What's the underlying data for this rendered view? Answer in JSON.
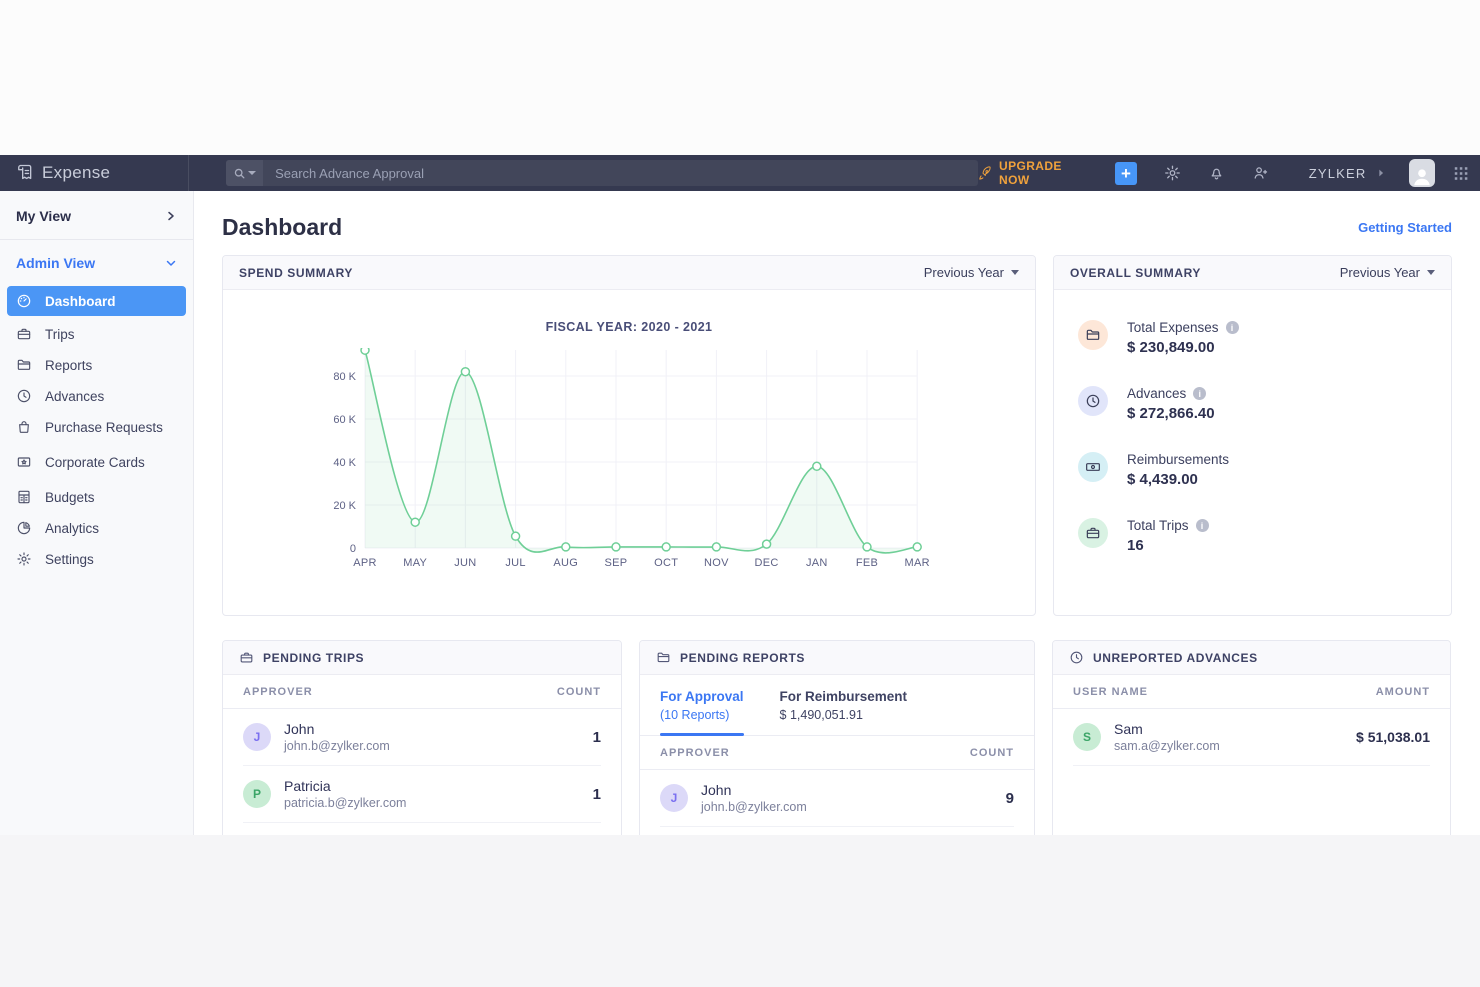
{
  "navbar": {
    "brand": "Expense",
    "search_placeholder": "Search Advance Approval",
    "upgrade_label": "UPGRADE NOW",
    "org_name": "ZYLKER"
  },
  "sidebar": {
    "my_view_label": "My View",
    "admin_view_label": "Admin View",
    "items": [
      {
        "label": "Dashboard",
        "icon": "dashboard-icon",
        "active": true
      },
      {
        "label": "Trips",
        "icon": "trips-icon",
        "active": false
      },
      {
        "label": "Reports",
        "icon": "reports-icon",
        "active": false
      },
      {
        "label": "Advances",
        "icon": "advances-icon",
        "active": false
      },
      {
        "label": "Purchase Requests",
        "icon": "purchase-requests-icon",
        "active": false
      },
      {
        "label": "Corporate Cards",
        "icon": "corporate-cards-icon",
        "active": false
      },
      {
        "label": "Budgets",
        "icon": "budgets-icon",
        "active": false
      },
      {
        "label": "Analytics",
        "icon": "analytics-icon",
        "active": false
      },
      {
        "label": "Settings",
        "icon": "settings-icon",
        "active": false
      }
    ]
  },
  "page": {
    "title": "Dashboard",
    "getting_started_label": "Getting Started"
  },
  "spend_summary": {
    "title": "SPEND SUMMARY",
    "period_selector": "Previous Year"
  },
  "chart_data": {
    "type": "area",
    "title": "FISCAL YEAR: 2020 - 2021",
    "categories": [
      "APR",
      "MAY",
      "JUN",
      "JUL",
      "AUG",
      "SEP",
      "OCT",
      "NOV",
      "DEC",
      "JAN",
      "FEB",
      "MAR"
    ],
    "values": [
      92000,
      12000,
      82000,
      5500,
      500,
      500,
      500,
      500,
      1800,
      38000,
      500,
      500
    ],
    "ylabel": "",
    "xlabel": "",
    "ylim": [
      0,
      95000
    ],
    "yticks": [
      0,
      20000,
      40000,
      60000,
      80000
    ],
    "ytick_labels": [
      "0",
      "20 K",
      "40 K",
      "60 K",
      "80 K"
    ],
    "grid": true,
    "legend": false,
    "line_color": "#6fcf97",
    "fill_color": "rgba(111,207,151,0.10)"
  },
  "overall_summary": {
    "title": "OVERALL SUMMARY",
    "period_selector": "Previous Year",
    "metrics": [
      {
        "label": "Total Expenses",
        "value": "$ 230,849.00",
        "icon": "folder-icon",
        "icon_bg": "#fde7d8",
        "has_info": true
      },
      {
        "label": "Advances",
        "value": "$ 272,866.40",
        "icon": "clock-icon",
        "icon_bg": "#e1e5fa",
        "has_info": true
      },
      {
        "label": "Reimbursements",
        "value": "$ 4,439.00",
        "icon": "banknote-icon",
        "icon_bg": "#d5eff5",
        "has_info": false
      },
      {
        "label": "Total Trips",
        "value": "16",
        "icon": "briefcase-icon",
        "icon_bg": "#d9f2e3",
        "has_info": true
      }
    ]
  },
  "pending_trips": {
    "title": "PENDING TRIPS",
    "columns": [
      "APPROVER",
      "COUNT"
    ],
    "rows": [
      {
        "initial": "J",
        "name": "John",
        "email": "john.b@zylker.com",
        "count": "1"
      },
      {
        "initial": "P",
        "name": "Patricia",
        "email": "patricia.b@zylker.com",
        "count": "1"
      }
    ]
  },
  "pending_reports": {
    "title": "PENDING REPORTS",
    "tabs": [
      {
        "label": "For Approval",
        "sub": "(10 Reports)",
        "active": true
      },
      {
        "label": "For Reimbursement",
        "sub": "$ 1,490,051.91",
        "active": false
      }
    ],
    "columns": [
      "APPROVER",
      "COUNT"
    ],
    "rows": [
      {
        "initial": "J",
        "name": "John",
        "email": "john.b@zylker.com",
        "count": "9"
      }
    ]
  },
  "unreported_advances": {
    "title": "UNREPORTED ADVANCES",
    "columns": [
      "USER NAME",
      "AMOUNT"
    ],
    "rows": [
      {
        "initial": "S",
        "name": "Sam",
        "email": "sam.a@zylker.com",
        "amount": "$ 51,038.01"
      }
    ]
  },
  "colors": {
    "navbar_bg": "#353950",
    "accent_blue": "#4b96f5",
    "link_blue": "#3b77f3",
    "upgrade_orange": "#f0a23c",
    "chart_line_green": "#6fcf97",
    "sidebar_bg": "#f8f9fb"
  }
}
